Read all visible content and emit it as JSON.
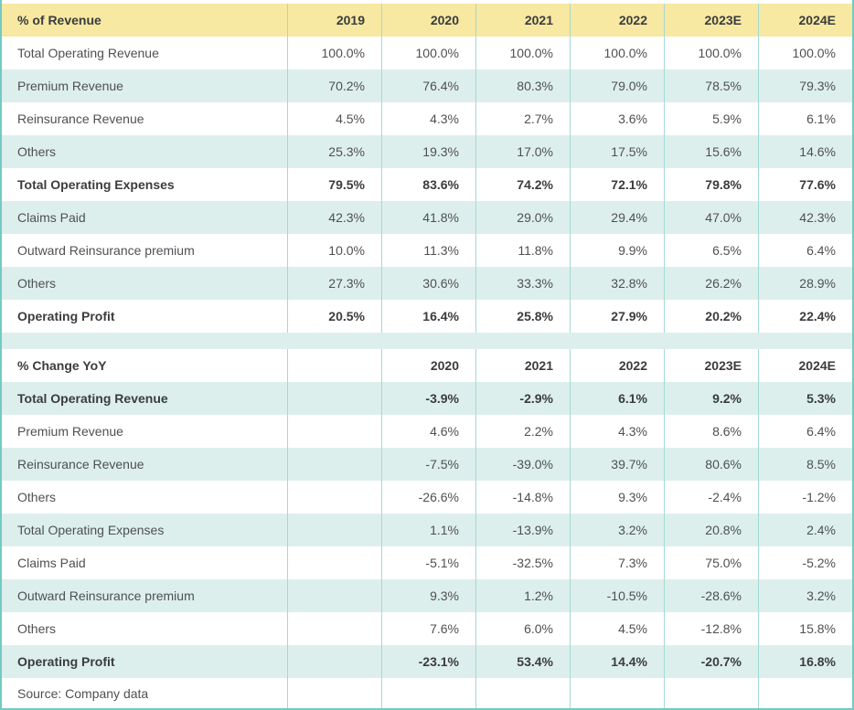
{
  "palette": {
    "header_yellow": "#f7e8a2",
    "zebra_teal": "#ddefec",
    "grid_line_teal": "#a3dad4",
    "outer_border_teal": "#74cac2",
    "text_regular": "#4e5053",
    "text_bold": "#3a3c3e"
  },
  "footer": {
    "source_note": "Source: Company data"
  },
  "chart_data": [
    {
      "type": "table",
      "title": "% of Revenue",
      "columns": [
        "% of Revenue",
        "2019",
        "2020",
        "2021",
        "2022",
        "2023E",
        "2024E"
      ],
      "rows": [
        {
          "label": "Total Operating Revenue",
          "bold": false,
          "values": [
            "100.0%",
            "100.0%",
            "100.0%",
            "100.0%",
            "100.0%",
            "100.0%"
          ]
        },
        {
          "label": "Premium Revenue",
          "bold": false,
          "values": [
            "70.2%",
            "76.4%",
            "80.3%",
            "79.0%",
            "78.5%",
            "79.3%"
          ]
        },
        {
          "label": "Reinsurance Revenue",
          "bold": false,
          "values": [
            "4.5%",
            "4.3%",
            "2.7%",
            "3.6%",
            "5.9%",
            "6.1%"
          ]
        },
        {
          "label": "Others",
          "bold": false,
          "values": [
            "25.3%",
            "19.3%",
            "17.0%",
            "17.5%",
            "15.6%",
            "14.6%"
          ]
        },
        {
          "label": "Total Operating Expenses",
          "bold": true,
          "values": [
            "79.5%",
            "83.6%",
            "74.2%",
            "72.1%",
            "79.8%",
            "77.6%"
          ]
        },
        {
          "label": "Claims Paid",
          "bold": false,
          "values": [
            "42.3%",
            "41.8%",
            "29.0%",
            "29.4%",
            "47.0%",
            "42.3%"
          ]
        },
        {
          "label": "Outward Reinsurance premium",
          "bold": false,
          "values": [
            "10.0%",
            "11.3%",
            "11.8%",
            "9.9%",
            "6.5%",
            "6.4%"
          ]
        },
        {
          "label": "Others",
          "bold": false,
          "values": [
            "27.3%",
            "30.6%",
            "33.3%",
            "32.8%",
            "26.2%",
            "28.9%"
          ]
        },
        {
          "label": "Operating Profit",
          "bold": true,
          "values": [
            "20.5%",
            "16.4%",
            "25.8%",
            "27.9%",
            "20.2%",
            "22.4%"
          ]
        }
      ]
    },
    {
      "type": "table",
      "title": "% Change YoY",
      "columns": [
        "% Change YoY",
        "",
        "2020",
        "2021",
        "2022",
        "2023E",
        "2024E"
      ],
      "rows": [
        {
          "label": "Total Operating Revenue",
          "bold": true,
          "values": [
            "",
            "-3.9%",
            "-2.9%",
            "6.1%",
            "9.2%",
            "5.3%"
          ]
        },
        {
          "label": "Premium Revenue",
          "bold": false,
          "values": [
            "",
            "4.6%",
            "2.2%",
            "4.3%",
            "8.6%",
            "6.4%"
          ]
        },
        {
          "label": "Reinsurance Revenue",
          "bold": false,
          "values": [
            "",
            "-7.5%",
            "-39.0%",
            "39.7%",
            "80.6%",
            "8.5%"
          ]
        },
        {
          "label": "Others",
          "bold": false,
          "values": [
            "",
            "-26.6%",
            "-14.8%",
            "9.3%",
            "-2.4%",
            "-1.2%"
          ]
        },
        {
          "label": "Total Operating Expenses",
          "bold": false,
          "values": [
            "",
            "1.1%",
            "-13.9%",
            "3.2%",
            "20.8%",
            "2.4%"
          ]
        },
        {
          "label": "Claims Paid",
          "bold": false,
          "values": [
            "",
            "-5.1%",
            "-32.5%",
            "7.3%",
            "75.0%",
            "-5.2%"
          ]
        },
        {
          "label": "Outward Reinsurance premium",
          "bold": false,
          "values": [
            "",
            "9.3%",
            "1.2%",
            "-10.5%",
            "-28.6%",
            "3.2%"
          ]
        },
        {
          "label": "Others",
          "bold": false,
          "values": [
            "",
            "7.6%",
            "6.0%",
            "4.5%",
            "-12.8%",
            "15.8%"
          ]
        },
        {
          "label": "Operating Profit",
          "bold": true,
          "values": [
            "",
            "-23.1%",
            "53.4%",
            "14.4%",
            "-20.7%",
            "16.8%"
          ]
        }
      ]
    }
  ]
}
